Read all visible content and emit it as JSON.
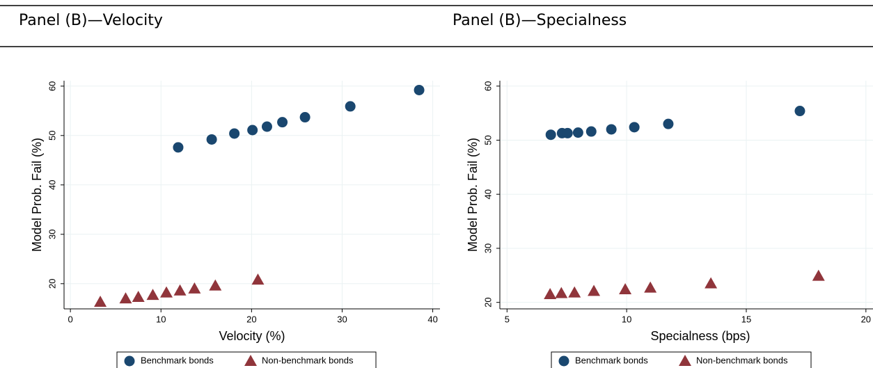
{
  "chart_data": [
    {
      "type": "scatter",
      "title": "Panel (B)—Velocity",
      "xlabel": "Velocity (%)",
      "ylabel": "Model Prob. Fail (%)",
      "xlim": [
        -0.7,
        40.8
      ],
      "ylim": [
        14.9,
        61.1
      ],
      "xticks": [
        0,
        10,
        20,
        30,
        40
      ],
      "yticks": [
        20,
        30,
        40,
        50,
        60
      ],
      "grid": true,
      "legend": "bottom",
      "series": [
        {
          "name": "Benchmark bonds",
          "color": "#1a476f",
          "marker": "circle",
          "x": [
            11.9,
            15.6,
            18.1,
            20.1,
            21.7,
            23.4,
            25.9,
            30.9,
            38.5
          ],
          "values": [
            47.6,
            49.2,
            50.4,
            51.1,
            51.8,
            52.7,
            53.7,
            55.9,
            59.2
          ]
        },
        {
          "name": "Non-benchmark bonds",
          "color": "#90353b",
          "marker": "triangle",
          "x": [
            3.3,
            6.1,
            7.5,
            9.1,
            10.6,
            12.1,
            13.7,
            16.0,
            20.7
          ],
          "values": [
            16.3,
            17.0,
            17.3,
            17.7,
            18.2,
            18.6,
            19.0,
            19.6,
            20.8
          ]
        }
      ]
    },
    {
      "type": "scatter",
      "title": "Panel (B)—Specialness",
      "xlabel": "Specialness (bps)",
      "ylabel": "Model Prob. Fail (%)",
      "xlim": [
        4.7,
        20.5
      ],
      "ylim": [
        18.8,
        61.0
      ],
      "xticks": [
        5,
        10,
        15,
        20
      ],
      "yticks": [
        20,
        30,
        40,
        50,
        60
      ],
      "grid": true,
      "legend": "bottom",
      "series": [
        {
          "name": "Benchmark bonds",
          "color": "#1a476f",
          "marker": "circle",
          "x": [
            6.83,
            7.3,
            7.53,
            7.97,
            8.52,
            9.36,
            10.32,
            11.74,
            17.24
          ],
          "values": [
            51.0,
            51.3,
            51.3,
            51.4,
            51.6,
            52.0,
            52.4,
            53.0,
            55.4
          ]
        },
        {
          "name": "Non-benchmark bonds",
          "color": "#90353b",
          "marker": "triangle",
          "x": [
            6.8,
            7.27,
            7.82,
            8.63,
            9.94,
            10.99,
            13.52,
            18.02
          ],
          "values": [
            21.5,
            21.7,
            21.8,
            22.1,
            22.4,
            22.7,
            23.5,
            24.9
          ]
        }
      ]
    }
  ]
}
